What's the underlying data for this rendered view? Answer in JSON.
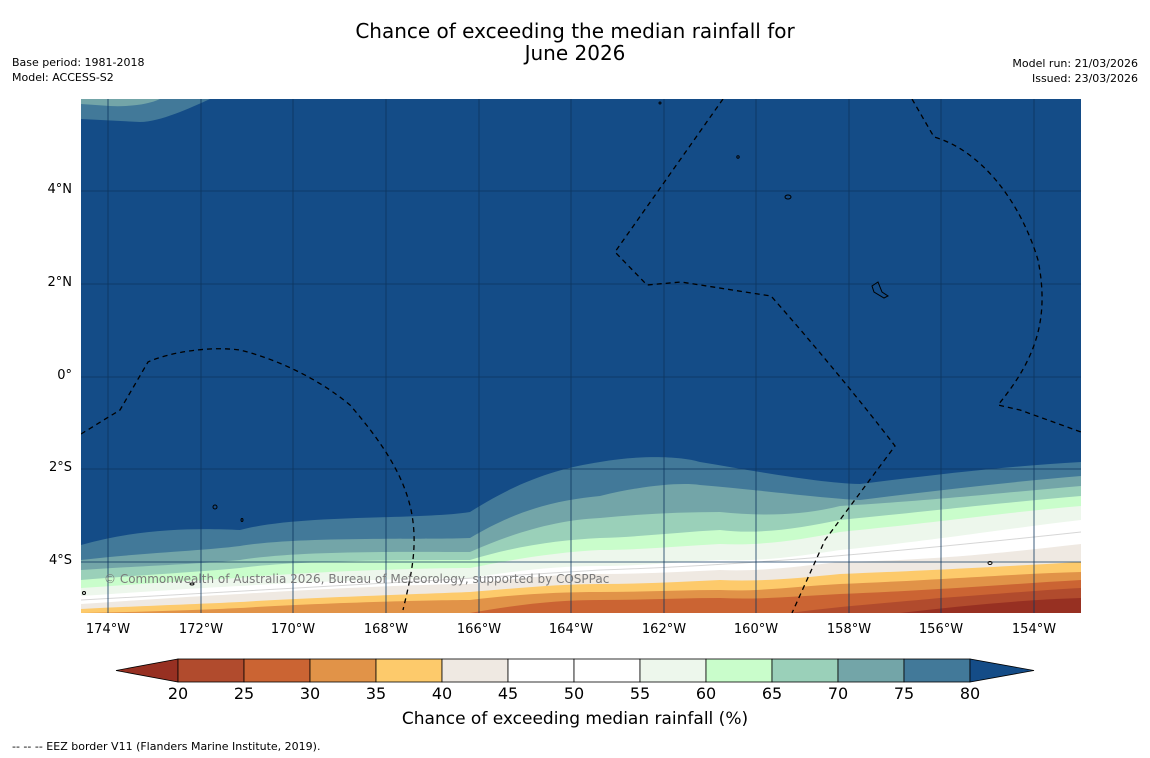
{
  "title_line1": "Chance of exceeding the median rainfall for",
  "title_line2": "June 2026",
  "base_period": "Base period: 1981-2018",
  "model": "Model: ACCESS-S2",
  "model_run": "Model run: 21/03/2026",
  "issued": "Issued: 23/03/2026",
  "credit": "© Commonwealth of Australia 2026, Bureau of Meteorology, supported by COSPPac",
  "footer": "--  --  -- EEZ border V11 (Flanders Marine Institute, 2019).",
  "lat_labels": [
    "4°N",
    "2°N",
    "0°",
    "2°S",
    "4°S"
  ],
  "lon_labels": [
    "174°W",
    "172°W",
    "170°W",
    "168°W",
    "166°W",
    "164°W",
    "162°W",
    "160°W",
    "158°W",
    "156°W",
    "154°W"
  ],
  "colorbar": {
    "title": "Chance of exceeding median rainfall (%)",
    "ticks": [
      "20",
      "25",
      "30",
      "35",
      "40",
      "45",
      "50",
      "55",
      "60",
      "65",
      "70",
      "75",
      "80"
    ],
    "colors": [
      "#973022",
      "#b14b2d",
      "#cb6433",
      "#e19348",
      "#fdca6b",
      "#efe9e2",
      "#ffffff",
      "#ffffff",
      "#edf7ec",
      "#c9fdcb",
      "#9ad0b9",
      "#73a5a8",
      "#427999",
      "#144c87"
    ]
  },
  "colors": {
    "ocean": "#144c87",
    "gridline": "#0d355e",
    "eez": "#000000"
  }
}
